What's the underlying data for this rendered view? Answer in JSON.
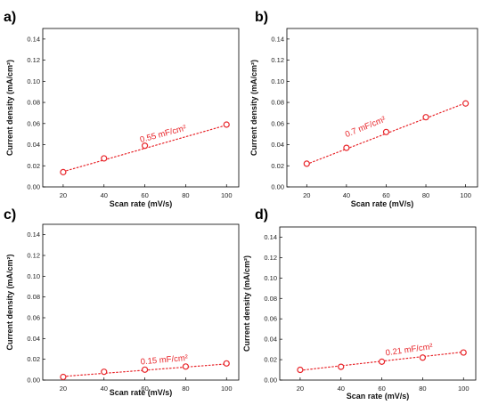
{
  "colors": {
    "marker": "#e8252a",
    "fit_line": "#e8252a",
    "axis": "#000000"
  },
  "chart_data": [
    {
      "type": "scatter",
      "panel": "a)",
      "xlabel": "Scan rate (mV/s)",
      "ylabel": "Current density (mA/cm²)",
      "xlim": [
        10,
        106
      ],
      "ylim": [
        0,
        0.15
      ],
      "xticks": [
        20,
        40,
        60,
        80,
        100
      ],
      "yticks": [
        0.0,
        0.02,
        0.04,
        0.06,
        0.08,
        0.1,
        0.12,
        0.14
      ],
      "x": [
        20,
        40,
        60,
        100
      ],
      "y": [
        0.014,
        0.027,
        0.039,
        0.059
      ],
      "fit": {
        "x": [
          20,
          100
        ],
        "y": [
          0.0145,
          0.0585
        ]
      },
      "annotation": {
        "text": "0.55 mF/cm²",
        "x": 58,
        "y": 0.042,
        "angle": -15
      }
    },
    {
      "type": "scatter",
      "panel": "b)",
      "xlabel": "Scan rate (mV/s)",
      "ylabel": "Current density (mA/cm²)",
      "xlim": [
        10,
        106
      ],
      "ylim": [
        0,
        0.15
      ],
      "xticks": [
        20,
        40,
        60,
        80,
        100
      ],
      "yticks": [
        0.0,
        0.02,
        0.04,
        0.06,
        0.08,
        0.1,
        0.12,
        0.14
      ],
      "x": [
        20,
        40,
        60,
        80,
        100
      ],
      "y": [
        0.022,
        0.037,
        0.052,
        0.066,
        0.079
      ],
      "fit": {
        "x": [
          20,
          100
        ],
        "y": [
          0.0215,
          0.0795
        ]
      },
      "annotation": {
        "text": "0.7 mF/cm²",
        "x": 40,
        "y": 0.047,
        "angle": -22
      }
    },
    {
      "type": "scatter",
      "panel": "c)",
      "xlabel": "Scan rate (mV/s)",
      "ylabel": "Current density (mA/cm²)",
      "xlim": [
        10,
        106
      ],
      "ylim": [
        0,
        0.15
      ],
      "xticks": [
        20,
        40,
        60,
        80,
        100
      ],
      "yticks": [
        0.0,
        0.02,
        0.04,
        0.06,
        0.08,
        0.1,
        0.12,
        0.14
      ],
      "x": [
        20,
        40,
        60,
        80,
        100
      ],
      "y": [
        0.003,
        0.008,
        0.01,
        0.013,
        0.016
      ],
      "fit": {
        "x": [
          20,
          100
        ],
        "y": [
          0.0035,
          0.0155
        ]
      },
      "annotation": {
        "text": "0.15 mF/cm²",
        "x": 58,
        "y": 0.015,
        "angle": -5
      }
    },
    {
      "type": "scatter",
      "panel": "d)",
      "xlabel": "Scan rate (mV/s)",
      "ylabel": "Current density (mA/cm²)",
      "xlim": [
        10,
        106
      ],
      "ylim": [
        0,
        0.15
      ],
      "xticks": [
        20,
        40,
        60,
        80,
        100
      ],
      "yticks": [
        0.0,
        0.02,
        0.04,
        0.06,
        0.08,
        0.1,
        0.12,
        0.14
      ],
      "x": [
        20,
        40,
        60,
        80,
        100
      ],
      "y": [
        0.01,
        0.013,
        0.018,
        0.022,
        0.027
      ],
      "fit": {
        "x": [
          20,
          100
        ],
        "y": [
          0.0095,
          0.0275
        ]
      },
      "annotation": {
        "text": "0.21 mF/cm²",
        "x": 62,
        "y": 0.024,
        "angle": -8
      }
    }
  ]
}
